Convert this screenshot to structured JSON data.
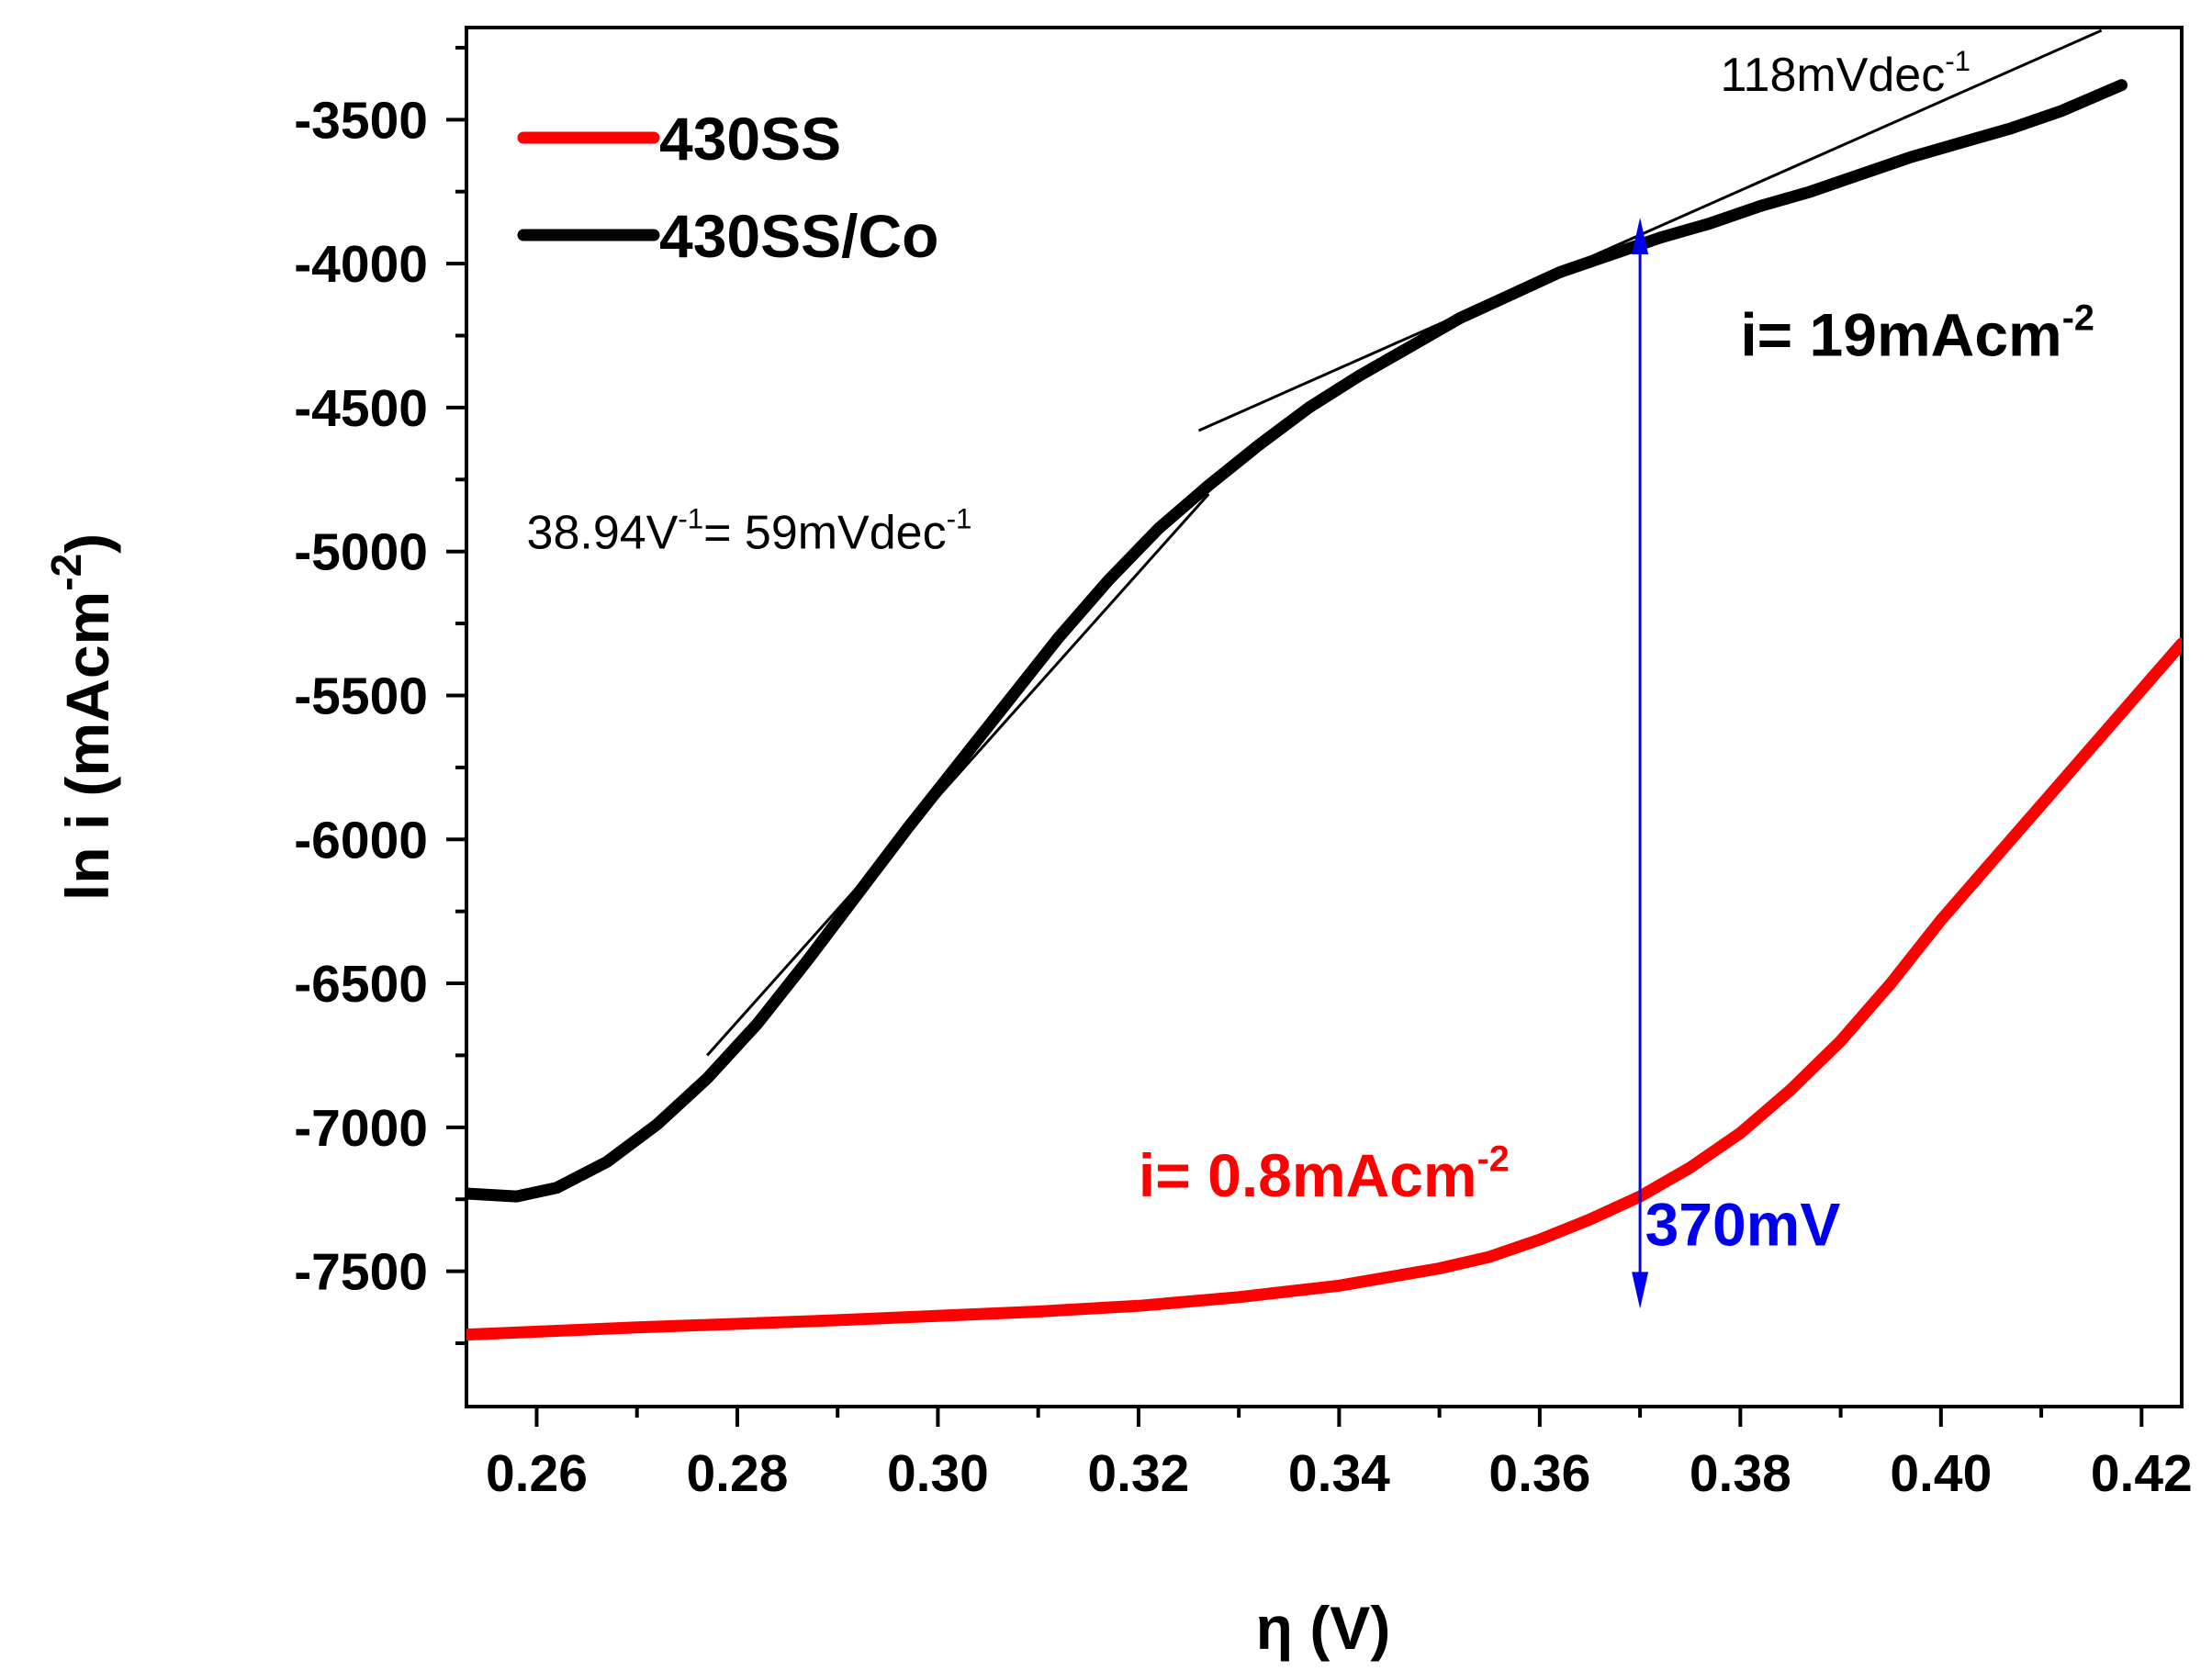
{
  "chart_data": {
    "type": "line",
    "title": "",
    "xlabel": "η (V)",
    "ylabel": {
      "base": "ln i (mAcm",
      "sup": "-2",
      "close": ")"
    },
    "xlim": [
      0.253,
      0.424
    ],
    "ylim": [
      -7970,
      -3180
    ],
    "xticks": [
      0.26,
      0.28,
      0.3,
      0.32,
      0.34,
      0.36,
      0.38,
      0.4,
      0.42
    ],
    "xtick_labels": [
      "0.26",
      "0.28",
      "0.30",
      "0.32",
      "0.34",
      "0.36",
      "0.38",
      "0.40",
      "0.42"
    ],
    "yticks": [
      -7500,
      -7000,
      -6500,
      -6000,
      -5500,
      -5000,
      -4500,
      -4000,
      -3500
    ],
    "ytick_labels": [
      "-7500",
      "-7000",
      "-6500",
      "-6000",
      "-5500",
      "-5000",
      "-4500",
      "-4000",
      "-3500"
    ],
    "legend_position": "top-left",
    "series": [
      {
        "name": "430SS",
        "color": "#ff0000",
        "x": [
          0.253,
          0.27,
          0.29,
          0.31,
          0.32,
          0.33,
          0.34,
          0.35,
          0.355,
          0.36,
          0.365,
          0.37,
          0.375,
          0.38,
          0.385,
          0.39,
          0.395,
          0.4,
          0.405,
          0.41,
          0.415,
          0.42,
          0.424
        ],
        "y": [
          -7720,
          -7695,
          -7670,
          -7640,
          -7620,
          -7590,
          -7550,
          -7490,
          -7450,
          -7390,
          -7320,
          -7240,
          -7140,
          -7020,
          -6870,
          -6700,
          -6500,
          -6280,
          -6080,
          -5880,
          -5680,
          -5480,
          -5320
        ]
      },
      {
        "name": "430SS/Co",
        "color": "#000000",
        "x": [
          0.253,
          0.258,
          0.262,
          0.267,
          0.272,
          0.277,
          0.282,
          0.287,
          0.292,
          0.297,
          0.302,
          0.307,
          0.312,
          0.317,
          0.322,
          0.327,
          0.332,
          0.337,
          0.342,
          0.347,
          0.352,
          0.357,
          0.362,
          0.367,
          0.372,
          0.377,
          0.382,
          0.387,
          0.392,
          0.397,
          0.402,
          0.407,
          0.412,
          0.418
        ],
        "y": [
          -7230,
          -7240,
          -7210,
          -7120,
          -6990,
          -6830,
          -6640,
          -6420,
          -6190,
          -5960,
          -5740,
          -5520,
          -5300,
          -5100,
          -4920,
          -4770,
          -4630,
          -4500,
          -4390,
          -4290,
          -4190,
          -4110,
          -4030,
          -3970,
          -3910,
          -3860,
          -3800,
          -3750,
          -3690,
          -3630,
          -3580,
          -3530,
          -3470,
          -3380
        ]
      }
    ],
    "fit_lines": [
      {
        "name": "tafel-fit-low",
        "x": [
          0.277,
          0.327
        ],
        "y": [
          -6750,
          -4800
        ]
      },
      {
        "name": "tafel-fit-high",
        "x": [
          0.326,
          0.416
        ],
        "y": [
          -4580,
          -3190
        ]
      }
    ],
    "marker": {
      "name": "overpotential-arrow",
      "x": 0.37,
      "y_top": -3840,
      "y_bottom": -7630,
      "color": "#0000ee"
    },
    "annotations": [
      {
        "name": "slope-high-label",
        "parts": [
          "118mVdec",
          "-1"
        ],
        "x": 0.378,
        "y": -3400,
        "color": "#000000",
        "size": 52,
        "weight": "normal"
      },
      {
        "name": "slope-low-label",
        "parts": [
          "38.94V",
          "-1",
          "= 59mVdec",
          "-1"
        ],
        "x": 0.259,
        "y": -4990,
        "color": "#000000",
        "size": 52,
        "weight": "normal"
      },
      {
        "name": "current-coated-label",
        "parts": [
          "i= 19mAcm",
          "-2"
        ],
        "x": 0.38,
        "y": -4320,
        "color": "#000000",
        "size": 66,
        "weight": "bold"
      },
      {
        "name": "current-bare-label",
        "parts": [
          "i= 0.8mAcm",
          "-2"
        ],
        "x": 0.32,
        "y": -7240,
        "color": "#ff0000",
        "size": 66,
        "weight": "bold"
      },
      {
        "name": "overpotential-label",
        "parts": [
          "370mV"
        ],
        "x": 0.3705,
        "y": -7410,
        "color": "#0000ee",
        "size": 66,
        "weight": "bold"
      }
    ]
  }
}
